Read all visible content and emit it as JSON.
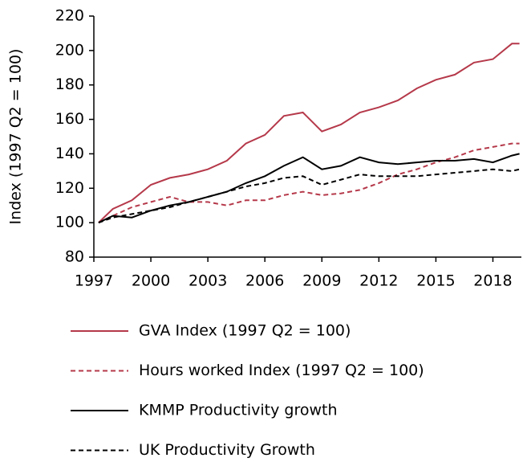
{
  "chart_data": {
    "type": "line",
    "y_label": "Index (1997 Q2 = 100)",
    "x": [
      1997.25,
      1998,
      1999,
      2000,
      2001,
      2002,
      2003,
      2004,
      2005,
      2006,
      2007,
      2008,
      2009,
      2010,
      2011,
      2012,
      2013,
      2014,
      2015,
      2016,
      2017,
      2018,
      2019,
      2019.4
    ],
    "xlim": [
      1997,
      2019.5
    ],
    "xticks": [
      1997,
      2000,
      2003,
      2006,
      2009,
      2012,
      2015,
      2018
    ],
    "ylim": [
      80,
      220
    ],
    "yticks": [
      80,
      100,
      120,
      140,
      160,
      180,
      200,
      220
    ],
    "series": [
      {
        "name": "GVA Index (1997 Q2 = 100)",
        "color": "#b5394a",
        "dashed": false,
        "values": [
          100,
          108,
          113,
          122,
          126,
          128,
          131,
          136,
          146,
          151,
          162,
          164,
          153,
          157,
          164,
          167,
          171,
          178,
          183,
          186,
          193,
          195,
          204,
          204
        ]
      },
      {
        "name": "Hours worked Index (1997 Q2 = 100)",
        "color": "#b5394a",
        "dashed": true,
        "values": [
          100,
          104,
          109,
          112,
          115,
          112,
          112,
          110,
          113,
          113,
          116,
          118,
          116,
          117,
          119,
          123,
          128,
          131,
          135,
          138,
          142,
          144,
          146,
          146
        ]
      },
      {
        "name": "KMMP Productivity growth",
        "color": "#000000",
        "dashed": false,
        "values": [
          100,
          104,
          103,
          107,
          110,
          112,
          115,
          118,
          123,
          127,
          133,
          138,
          131,
          133,
          138,
          135,
          134,
          135,
          136,
          136,
          137,
          135,
          139,
          140
        ]
      },
      {
        "name": "UK Productivity Growth",
        "color": "#000000",
        "dashed": true,
        "values": [
          100,
          103,
          105,
          107,
          109,
          112,
          115,
          118,
          121,
          123,
          126,
          127,
          122,
          125,
          128,
          127,
          127,
          127,
          128,
          129,
          130,
          131,
          130,
          131
        ]
      }
    ]
  }
}
